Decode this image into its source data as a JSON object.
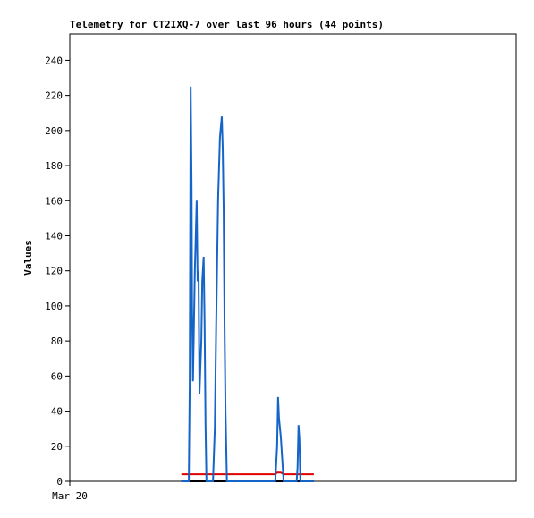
{
  "chart_data": {
    "type": "line",
    "title": "Telemetry for CT2IXQ-7 over last 96 hours (44 points)",
    "y_label": "Values",
    "xlim": [
      0,
      96
    ],
    "xticks": [
      {
        "value": 0,
        "label": "Mar 20"
      }
    ],
    "ylim": [
      0,
      255
    ],
    "yticks": [
      0,
      20,
      40,
      60,
      80,
      100,
      120,
      140,
      160,
      180,
      200,
      220,
      240
    ],
    "x": [
      24.0,
      24.6,
      25.6,
      25.8,
      26.0,
      26.2,
      26.3,
      26.5,
      26.9,
      27.3,
      27.5,
      27.7,
      27.9,
      28.3,
      28.5,
      28.8,
      29.0,
      29.2,
      29.4,
      30.8,
      31.2,
      31.5,
      31.9,
      32.3,
      32.7,
      32.9,
      33.1,
      33.3,
      33.5,
      33.8,
      40.8,
      44.2,
      44.6,
      44.8,
      45.0,
      45.4,
      46.0,
      48.8,
      49.0,
      49.2,
      49.4,
      49.6,
      51.3,
      52.5
    ],
    "series": [
      {
        "color": "#1565c8",
        "values": [
          0,
          0,
          0,
          56,
          225,
          168,
          100,
          57,
          120,
          160,
          114,
          120,
          50,
          80,
          114,
          128,
          90,
          32,
          0,
          0,
          30,
          90,
          160,
          196,
          208,
          190,
          155,
          87,
          40,
          0,
          0,
          0,
          20,
          48,
          36,
          25,
          0,
          0,
          8,
          32,
          24,
          0,
          0,
          0
        ]
      },
      {
        "color": "#000000",
        "values": [
          0,
          0,
          0,
          0,
          0,
          0,
          0,
          0,
          0,
          0,
          0,
          0,
          0,
          0,
          0,
          0,
          0,
          0,
          0,
          0,
          0,
          0,
          0,
          0,
          0,
          0,
          0,
          0,
          0,
          0,
          0,
          0,
          0,
          0,
          0,
          0,
          0,
          0,
          0,
          0,
          0,
          0,
          0,
          0
        ]
      },
      {
        "color": "#e00000",
        "values": [
          4,
          4,
          4,
          4,
          4,
          4,
          4,
          4,
          4,
          4,
          4,
          4,
          4,
          4,
          4,
          4,
          4,
          4,
          4,
          4,
          4,
          4,
          4,
          4,
          4,
          4,
          4,
          4,
          4,
          4,
          4,
          4,
          5,
          5,
          5,
          5,
          4,
          4,
          4,
          4,
          4,
          4,
          4,
          4
        ]
      }
    ]
  }
}
